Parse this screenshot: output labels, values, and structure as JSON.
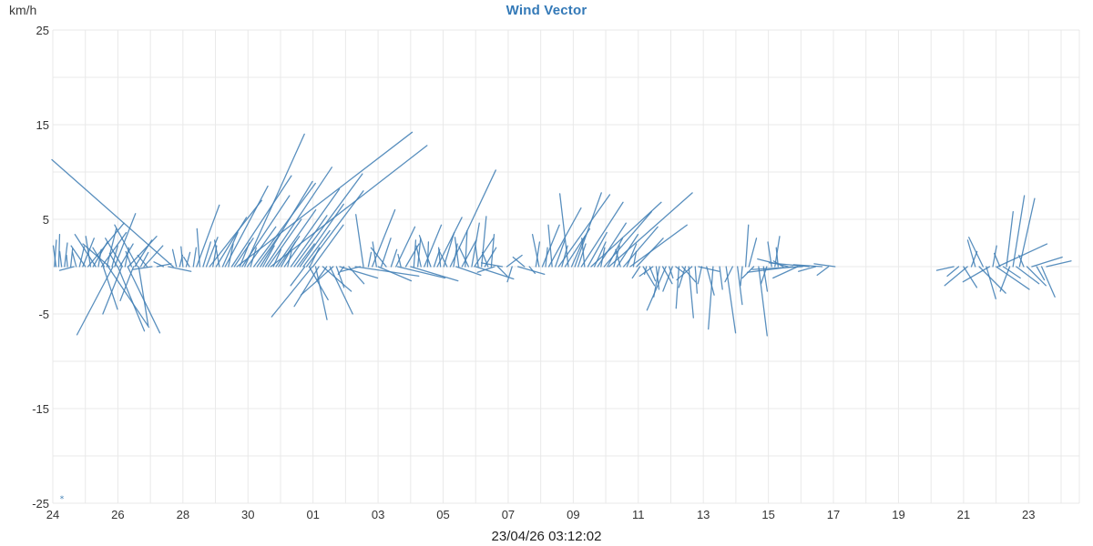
{
  "title": "Wind Vector",
  "y_axis": {
    "unit_label": "km/h",
    "tick_values": [
      25,
      15,
      5,
      -5,
      -15,
      -25
    ],
    "min": -25,
    "max": 25,
    "grid_step": 5
  },
  "x_axis": {
    "tick_labels": [
      "24",
      "26",
      "28",
      "30",
      "01",
      "03",
      "05",
      "07",
      "09",
      "11",
      "13",
      "15",
      "17",
      "19",
      "21",
      "23"
    ],
    "ticks_every_days": 2,
    "timestamp_label": "23/04/26 03:12:02"
  },
  "colors": {
    "vector": "#4280b5",
    "grid": "#e9e9e9",
    "title": "#3379b7",
    "axis_text": "#333333"
  },
  "chart_data": {
    "type": "scatter",
    "subtype": "wind-vector-sticks",
    "title": "Wind Vector",
    "ylabel": "km/h",
    "ylim": [
      -25,
      25
    ],
    "x_unit": "days since first tick (tick labels every 2 days)",
    "x_range_days": [
      0,
      31.56
    ],
    "grid": true,
    "legend": false,
    "note": "each vector is [t_days, u_kmh, v_kmh], stick drawn from (t,0) to (t+u, v) at equal km/h scale",
    "marker": {
      "t": 0.28,
      "value": -24.5,
      "symbol": "*"
    },
    "vectors": [
      [
        0.05,
        0.2,
        2.8
      ],
      [
        0.1,
        -0.3,
        2.2
      ],
      [
        0.18,
        0.1,
        3.4
      ],
      [
        0.27,
        -0.2,
        1.6
      ],
      [
        0.36,
        0.3,
        2.5
      ],
      [
        0.45,
        -0.1,
        1.2
      ],
      [
        0.55,
        0.2,
        1.9
      ],
      [
        0.65,
        -1.5,
        -0.4
      ],
      [
        0.72,
        -0.4,
        1.5
      ],
      [
        0.82,
        0.5,
        2.1
      ],
      [
        0.92,
        1.2,
        3.0
      ],
      [
        1.0,
        -1.5,
        2.2
      ],
      [
        1.08,
        3.8,
        4.6
      ],
      [
        1.16,
        -0.5,
        3.2
      ],
      [
        1.24,
        1.5,
        2.6
      ],
      [
        1.32,
        -2.2,
        3.4
      ],
      [
        1.4,
        0.3,
        1.8
      ],
      [
        1.5,
        2.6,
        3.6
      ],
      [
        1.58,
        -1.2,
        2.0
      ],
      [
        1.66,
        1.0,
        4.0
      ],
      [
        1.74,
        -2.8,
        2.4
      ],
      [
        1.82,
        0.6,
        2.2
      ],
      [
        1.9,
        2.2,
        5.6
      ],
      [
        1.98,
        -0.8,
        1.4
      ],
      [
        2.06,
        1.4,
        2.4
      ],
      [
        2.14,
        -1.8,
        3.0
      ],
      [
        2.22,
        0.4,
        2.0
      ],
      [
        2.32,
        3.0,
        3.2
      ],
      [
        2.42,
        -0.6,
        1.6
      ],
      [
        2.52,
        1.8,
        2.8
      ],
      [
        2.6,
        -2.4,
        4.4
      ],
      [
        2.7,
        0.8,
        1.5
      ],
      [
        2.8,
        2.0,
        2.2
      ],
      [
        2.9,
        -1.0,
        1.2
      ],
      [
        1.55,
        1.5,
        -4.5
      ],
      [
        1.7,
        4.3,
        -6.4
      ],
      [
        1.85,
        -3.8,
        -7.2
      ],
      [
        2.0,
        2.8,
        -6.8
      ],
      [
        2.12,
        -2.0,
        -5.0
      ],
      [
        2.3,
        3.4,
        -7.0
      ],
      [
        2.48,
        -1.4,
        -3.6
      ],
      [
        2.64,
        1.0,
        -6.2
      ],
      [
        3.05,
        -2.0,
        -0.3
      ],
      [
        3.2,
        1.5,
        0.3
      ],
      [
        3.4,
        -1.0,
        0.5
      ],
      [
        3.55,
        2.4,
        -0.5
      ],
      [
        3.7,
        -12.8,
        11.3
      ],
      [
        3.8,
        -0.4,
        1.8
      ],
      [
        3.9,
        0.3,
        1.2
      ],
      [
        4.0,
        -0.2,
        2.1
      ],
      [
        4.1,
        0.4,
        1.5
      ],
      [
        4.2,
        -0.6,
        1.0
      ],
      [
        4.32,
        0.3,
        2.0
      ],
      [
        4.42,
        2.4,
        6.5
      ],
      [
        4.52,
        -0.3,
        4.0
      ],
      [
        4.62,
        0.8,
        2.6
      ],
      [
        4.72,
        1.2,
        3.1
      ],
      [
        4.82,
        5.5,
        7.0
      ],
      [
        4.92,
        0.4,
        2.2
      ],
      [
        5.02,
        3.2,
        5.2
      ],
      [
        5.12,
        -0.5,
        2.8
      ],
      [
        5.22,
        1.6,
        3.6
      ],
      [
        5.3,
        4.5,
        8.5
      ],
      [
        5.4,
        0.5,
        2.4
      ],
      [
        5.5,
        6.3,
        9.6
      ],
      [
        5.58,
        2.0,
        3.0
      ],
      [
        5.66,
        18.5,
        14.2
      ],
      [
        5.75,
        1.0,
        2.5
      ],
      [
        5.82,
        5.0,
        7.5
      ],
      [
        5.9,
        6.3,
        14.0
      ],
      [
        5.98,
        3.0,
        4.2
      ],
      [
        6.08,
        0.6,
        2.0
      ],
      [
        6.18,
        6.5,
        8.8
      ],
      [
        6.28,
        2.4,
        3.4
      ],
      [
        6.38,
        5.5,
        9.0
      ],
      [
        6.46,
        1.2,
        2.2
      ],
      [
        6.54,
        7.0,
        10.5
      ],
      [
        6.62,
        3.5,
        5.0
      ],
      [
        6.7,
        16.5,
        12.8
      ],
      [
        6.78,
        0.8,
        1.8
      ],
      [
        6.86,
        4.2,
        6.0
      ],
      [
        6.94,
        2.2,
        3.2
      ],
      [
        7.02,
        1.5,
        2.6
      ],
      [
        7.12,
        5.8,
        8.2
      ],
      [
        7.22,
        0.4,
        1.6
      ],
      [
        7.32,
        3.8,
        5.4
      ],
      [
        7.42,
        7.2,
        9.8
      ],
      [
        7.52,
        1.8,
        2.4
      ],
      [
        7.6,
        4.6,
        6.6
      ],
      [
        7.7,
        2.8,
        3.8
      ],
      [
        7.8,
        6.0,
        8.0
      ],
      [
        7.9,
        1.0,
        2.0
      ],
      [
        8.0,
        3.2,
        4.4
      ],
      [
        7.75,
        -1.5,
        -2.0
      ],
      [
        7.88,
        2.0,
        -3.5
      ],
      [
        7.98,
        -4.3,
        -5.3
      ],
      [
        8.08,
        1.2,
        -5.6
      ],
      [
        8.18,
        -2.6,
        -4.2
      ],
      [
        8.3,
        3.0,
        -2.6
      ],
      [
        8.42,
        -1.0,
        -1.4
      ],
      [
        8.52,
        2.4,
        -5.0
      ],
      [
        8.62,
        -3.4,
        -3.0
      ],
      [
        8.72,
        0.8,
        -2.2
      ],
      [
        8.82,
        4.0,
        -1.2
      ],
      [
        8.95,
        -0.6,
        -0.8
      ],
      [
        9.1,
        1.6,
        -1.8
      ],
      [
        9.3,
        6.7,
        -1.0
      ],
      [
        9.45,
        -2.0,
        -0.5
      ],
      [
        9.55,
        -0.8,
        5.5
      ],
      [
        9.7,
        0.3,
        1.5
      ],
      [
        9.82,
        2.4,
        6.0
      ],
      [
        9.95,
        -0.4,
        2.6
      ],
      [
        10.0,
        3.5,
        -1.5
      ],
      [
        10.1,
        1.0,
        3.0
      ],
      [
        10.25,
        -1.6,
        2.0
      ],
      [
        10.4,
        0.6,
        1.8
      ],
      [
        10.55,
        2.0,
        4.2
      ],
      [
        10.6,
        5.0,
        -1.2
      ],
      [
        10.7,
        -0.3,
        1.3
      ],
      [
        10.85,
        1.4,
        2.4
      ],
      [
        11.0,
        5.0,
        -1.5
      ],
      [
        11.1,
        0.2,
        2.8
      ],
      [
        11.22,
        0.3,
        3.0
      ],
      [
        11.32,
        -0.5,
        2.2
      ],
      [
        11.42,
        1.8,
        4.4
      ],
      [
        11.52,
        0.1,
        2.6
      ],
      [
        11.62,
        -1.2,
        3.3
      ],
      [
        11.72,
        0.6,
        1.8
      ],
      [
        11.82,
        2.6,
        5.2
      ],
      [
        11.92,
        -0.2,
        2.0
      ],
      [
        12.02,
        1.1,
        3.6
      ],
      [
        12.12,
        -0.8,
        1.6
      ],
      [
        12.22,
        4.8,
        10.2
      ],
      [
        12.32,
        0.4,
        2.4
      ],
      [
        12.4,
        2.6,
        -0.9
      ],
      [
        12.48,
        -0.4,
        3.1
      ],
      [
        12.58,
        1.5,
        2.8
      ],
      [
        12.68,
        0.2,
        3.8
      ],
      [
        12.78,
        -1.0,
        2.1
      ],
      [
        12.88,
        0.8,
        4.6
      ],
      [
        12.96,
        2.0,
        3.0
      ],
      [
        13.0,
        4.0,
        -1.3
      ],
      [
        13.08,
        -0.3,
        2.3
      ],
      [
        13.18,
        0.5,
        5.3
      ],
      [
        13.28,
        1.2,
        2.0
      ],
      [
        13.38,
        -0.6,
        1.5
      ],
      [
        13.48,
        0.3,
        3.4
      ],
      [
        13.58,
        -1.8,
        -0.6
      ],
      [
        13.68,
        1.0,
        -1.0
      ],
      [
        13.82,
        -2.2,
        0.4
      ],
      [
        13.96,
        1.6,
        1.2
      ],
      [
        14.12,
        -0.5,
        -1.6
      ],
      [
        14.3,
        2.8,
        -0.8
      ],
      [
        14.5,
        -1.2,
        1.0
      ],
      [
        14.65,
        0.6,
        -0.7
      ],
      [
        14.85,
        0.4,
        2.6
      ],
      [
        14.95,
        -0.7,
        3.4
      ],
      [
        15.05,
        1.8,
        4.4
      ],
      [
        15.15,
        0.2,
        2.0
      ],
      [
        15.25,
        3.4,
        6.2
      ],
      [
        15.35,
        -0.4,
        4.4
      ],
      [
        15.45,
        1.0,
        2.8
      ],
      [
        15.55,
        5.4,
        7.6
      ],
      [
        15.65,
        0.6,
        2.2
      ],
      [
        15.75,
        2.6,
        4.0
      ],
      [
        15.85,
        -0.9,
        7.7
      ],
      [
        15.95,
        1.4,
        3.2
      ],
      [
        16.05,
        2.8,
        7.8
      ],
      [
        16.15,
        0.8,
        2.4
      ],
      [
        16.25,
        4.4,
        6.8
      ],
      [
        16.35,
        -0.3,
        3.0
      ],
      [
        16.45,
        2.0,
        3.6
      ],
      [
        16.55,
        7.4,
        6.8
      ],
      [
        16.65,
        1.2,
        2.6
      ],
      [
        16.75,
        3.0,
        4.6
      ],
      [
        16.85,
        0.4,
        2.0
      ],
      [
        16.95,
        5.0,
        5.8
      ],
      [
        17.05,
        1.6,
        3.0
      ],
      [
        17.1,
        8.8,
        7.8
      ],
      [
        17.25,
        0.6,
        2.2
      ],
      [
        17.35,
        2.2,
        3.4
      ],
      [
        17.45,
        -0.5,
        1.8
      ],
      [
        17.55,
        3.6,
        4.2
      ],
      [
        17.65,
        1.0,
        2.4
      ],
      [
        17.75,
        6.0,
        4.4
      ],
      [
        17.85,
        0.3,
        1.6
      ],
      [
        17.95,
        2.8,
        3.0
      ],
      [
        18.05,
        -0.8,
        -1.2
      ],
      [
        18.15,
        1.2,
        -2.0
      ],
      [
        18.25,
        -0.2,
        -0.8
      ],
      [
        18.35,
        0.6,
        -1.5
      ],
      [
        18.45,
        -1.4,
        -1.0
      ],
      [
        18.55,
        0.3,
        -2.4
      ],
      [
        18.65,
        -0.6,
        -3.2
      ],
      [
        18.75,
        1.0,
        -1.8
      ],
      [
        18.85,
        -2.0,
        -4.6
      ],
      [
        18.95,
        0.4,
        -1.2
      ],
      [
        19.05,
        -1.0,
        -2.6
      ],
      [
        19.15,
        0.8,
        -0.6
      ],
      [
        19.25,
        -0.3,
        -4.4
      ],
      [
        19.35,
        1.4,
        -1.6
      ],
      [
        19.45,
        -0.7,
        -2.2
      ],
      [
        19.55,
        0.5,
        -5.4
      ],
      [
        19.65,
        -1.6,
        -1.4
      ],
      [
        19.75,
        0.2,
        -2.8
      ],
      [
        19.85,
        2.2,
        -0.5
      ],
      [
        19.95,
        -0.4,
        -1.8
      ],
      [
        20.1,
        0.8,
        -3.0
      ],
      [
        20.3,
        -0.5,
        -6.6
      ],
      [
        20.5,
        0.3,
        -2.4
      ],
      [
        20.7,
        1.0,
        -7.0
      ],
      [
        20.9,
        -0.8,
        -1.6
      ],
      [
        21.05,
        0.5,
        -4.0
      ],
      [
        21.2,
        -0.2,
        -2.0
      ],
      [
        21.3,
        0.3,
        4.4
      ],
      [
        21.4,
        0.8,
        3.0
      ],
      [
        21.55,
        -1.2,
        -1.2
      ],
      [
        21.7,
        0.9,
        -7.3
      ],
      [
        21.85,
        0.4,
        -2.6
      ],
      [
        21.95,
        -0.6,
        -1.8
      ],
      [
        22.1,
        -0.4,
        2.6
      ],
      [
        22.2,
        0.5,
        3.2
      ],
      [
        22.3,
        -0.2,
        2.0
      ],
      [
        22.45,
        -1.0,
        0.6
      ],
      [
        22.6,
        -3.2,
        0.8
      ],
      [
        22.75,
        -4.8,
        -0.6
      ],
      [
        22.9,
        -2.6,
        -1.2
      ],
      [
        23.05,
        -5.3,
        -0.3
      ],
      [
        23.25,
        -4.2,
        0.4
      ],
      [
        23.45,
        -1.8,
        -0.5
      ],
      [
        23.65,
        -3.0,
        0.2
      ],
      [
        23.85,
        -1.2,
        -0.9
      ],
      [
        24.05,
        -2.2,
        0.3
      ],
      [
        27.7,
        -1.8,
        -0.4
      ],
      [
        27.85,
        -1.2,
        -1.0
      ],
      [
        28.0,
        1.4,
        -2.2
      ],
      [
        28.12,
        -2.4,
        -2.0
      ],
      [
        28.24,
        0.6,
        1.6
      ],
      [
        28.36,
        -0.8,
        2.8
      ],
      [
        28.48,
        2.8,
        -2.8
      ],
      [
        28.6,
        -1.5,
        3.1
      ],
      [
        28.7,
        1.0,
        -3.4
      ],
      [
        28.8,
        -2.8,
        -1.6
      ],
      [
        28.9,
        0.4,
        2.2
      ],
      [
        29.0,
        3.5,
        -2.4
      ],
      [
        29.05,
        5.2,
        2.4
      ],
      [
        29.12,
        -0.6,
        1.4
      ],
      [
        29.22,
        1.8,
        -1.2
      ],
      [
        29.32,
        0.7,
        5.8
      ],
      [
        29.42,
        -1.0,
        -2.6
      ],
      [
        29.52,
        1.2,
        7.5
      ],
      [
        29.62,
        2.4,
        -1.8
      ],
      [
        29.72,
        1.6,
        7.2
      ],
      [
        29.85,
        -0.5,
        1.2
      ],
      [
        29.95,
        2.0,
        -2.0
      ],
      [
        30.1,
        3.2,
        1.0
      ],
      [
        30.25,
        0.8,
        -1.4
      ],
      [
        30.4,
        1.4,
        -3.2
      ],
      [
        30.55,
        2.6,
        0.6
      ]
    ]
  }
}
